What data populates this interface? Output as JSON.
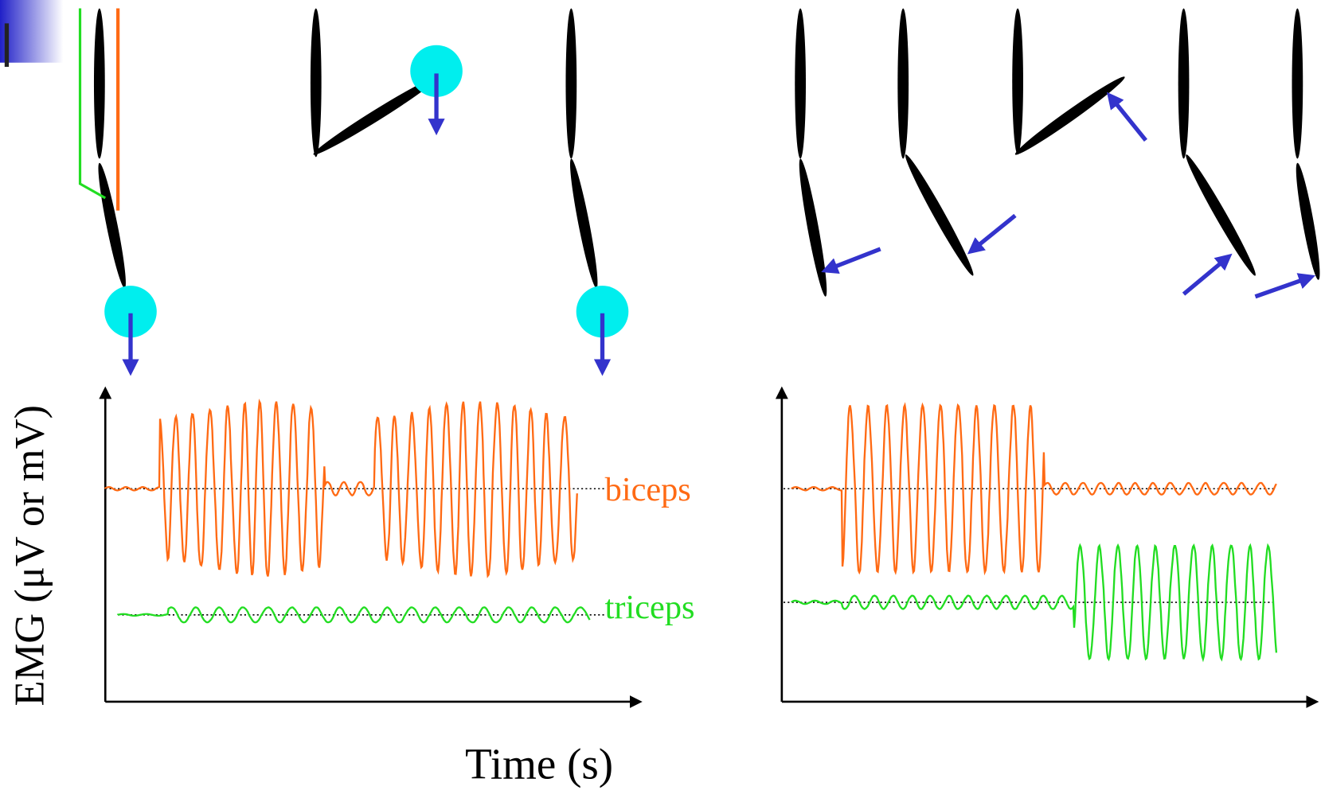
{
  "labels": {
    "biceps": "biceps",
    "triceps": "triceps"
  },
  "axes": {
    "y_label": "EMG (μV or mV)",
    "x_label": "Time (s)"
  }
}
